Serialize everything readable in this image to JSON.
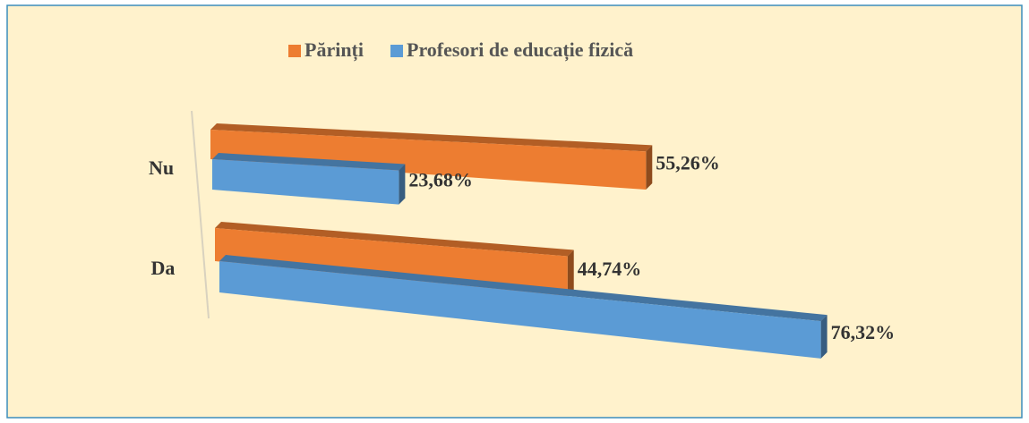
{
  "chart_data": {
    "type": "bar3d",
    "categories": [
      "Nu",
      "Da"
    ],
    "series": [
      {
        "name": "Părinți",
        "color": "#ED7D31",
        "values": [
          55.26,
          44.74
        ],
        "value_labels": [
          "55,26%",
          "44,74%"
        ]
      },
      {
        "name": "Profesori de educație fizică",
        "color": "#5B9BD5",
        "values": [
          23.68,
          76.32
        ],
        "value_labels": [
          "23,68%",
          "76,32%"
        ]
      }
    ],
    "legend": "top"
  }
}
